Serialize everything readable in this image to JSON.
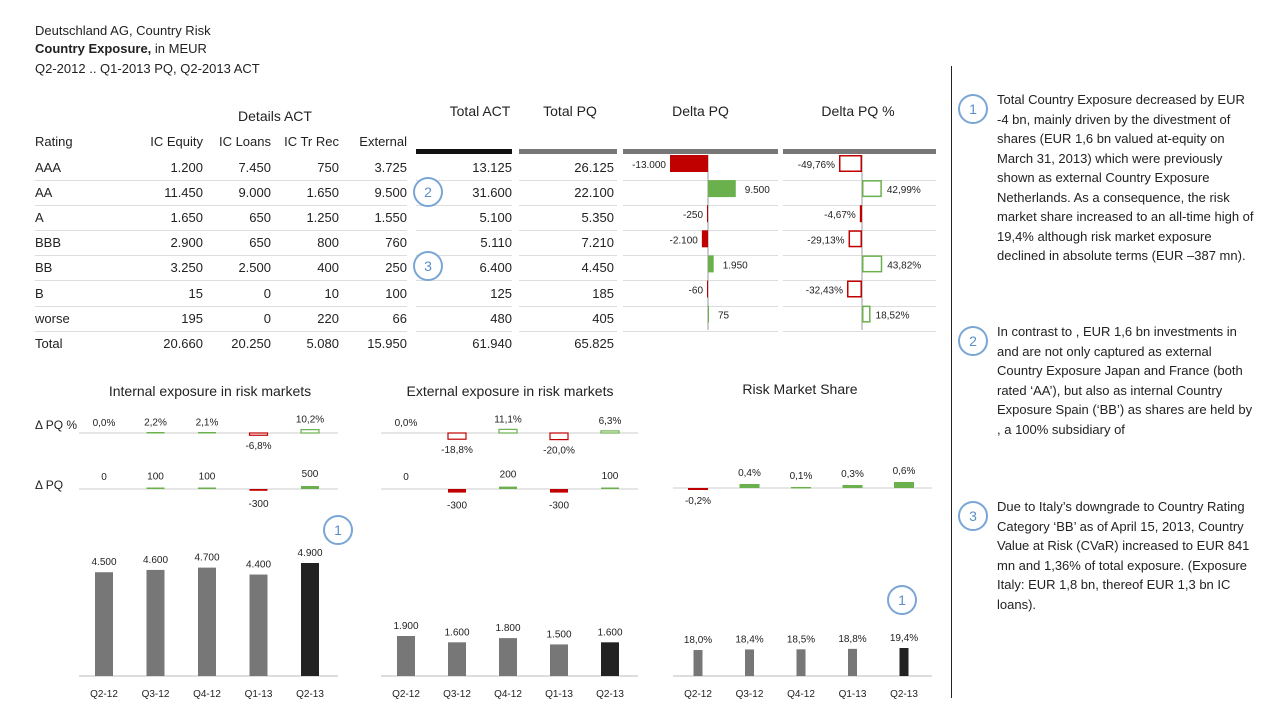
{
  "header": {
    "line1": "Deutschland AG, Country Risk",
    "line2_bold": "Country Exposure,",
    "line2_rest": " in MEUR",
    "line3": "Q2-2012 .. Q1-2013 PQ, Q2-2013 ACT"
  },
  "table": {
    "group_header": "Details ACT",
    "columns": [
      "Rating",
      "IC Equity",
      "IC Loans",
      "IC Tr Rec",
      "External",
      "Total ACT",
      "Total PQ",
      "Delta PQ",
      "Delta PQ %"
    ],
    "rows": [
      {
        "rating": "AAA",
        "ic_equity": "1.200",
        "ic_loans": "7.450",
        "ic_tr_rec": "750",
        "external": "3.725",
        "total_act": "13.125",
        "total_pq": "26.125",
        "delta_label": "-13.000",
        "delta_pct_label": "-49,76%"
      },
      {
        "rating": "AA",
        "ic_equity": "11.450",
        "ic_loans": "9.000",
        "ic_tr_rec": "1.650",
        "external": "9.500",
        "total_act": "31.600",
        "total_pq": "22.100",
        "delta_label": "9.500",
        "delta_pct_label": "42,99%"
      },
      {
        "rating": "A",
        "ic_equity": "1.650",
        "ic_loans": "650",
        "ic_tr_rec": "1.250",
        "external": "1.550",
        "total_act": "5.100",
        "total_pq": "5.350",
        "delta_label": "-250",
        "delta_pct_label": "-4,67%"
      },
      {
        "rating": "BBB",
        "ic_equity": "2.900",
        "ic_loans": "650",
        "ic_tr_rec": "800",
        "external": "760",
        "total_act": "5.110",
        "total_pq": "7.210",
        "delta_label": "-2.100",
        "delta_pct_label": "-29,13%"
      },
      {
        "rating": "BB",
        "ic_equity": "3.250",
        "ic_loans": "2.500",
        "ic_tr_rec": "400",
        "external": "250",
        "total_act": "6.400",
        "total_pq": "4.450",
        "delta_label": "1.950",
        "delta_pct_label": "43,82%"
      },
      {
        "rating": "B",
        "ic_equity": "15",
        "ic_loans": "0",
        "ic_tr_rec": "10",
        "external": "100",
        "total_act": "125",
        "total_pq": "185",
        "delta_label": "-60",
        "delta_pct_label": "-32,43%"
      },
      {
        "rating": "worse",
        "ic_equity": "195",
        "ic_loans": "0",
        "ic_tr_rec": "220",
        "external": "66",
        "total_act": "480",
        "total_pq": "405",
        "delta_label": "75",
        "delta_pct_label": "18,52%"
      }
    ],
    "total": {
      "rating": "Total",
      "ic_equity": "20.660",
      "ic_loans": "20.250",
      "ic_tr_rec": "5.080",
      "external": "15.950",
      "total_act": "61.940",
      "total_pq": "65.825"
    }
  },
  "badges": {
    "one": "1",
    "two": "2",
    "three": "3"
  },
  "labels": {
    "delta_pq_pct": "Δ PQ %",
    "delta_pq": "Δ PQ"
  },
  "colors": {
    "actual": "#222222",
    "previous": "#777777",
    "positive": "#6ab04c",
    "negative": "#c00000",
    "badge": "#5b8ec8"
  },
  "chart_data": [
    {
      "type": "bar",
      "title": "Delta PQ",
      "categories": [
        "AAA",
        "AA",
        "A",
        "BBB",
        "BB",
        "B",
        "worse"
      ],
      "values": [
        -13000,
        9500,
        -250,
        -2100,
        1950,
        -60,
        75
      ],
      "orientation": "horizontal"
    },
    {
      "type": "bar",
      "title": "Delta PQ %",
      "categories": [
        "AAA",
        "AA",
        "A",
        "BBB",
        "BB",
        "B",
        "worse"
      ],
      "values": [
        -49.76,
        42.99,
        -4.67,
        -29.13,
        43.82,
        -32.43,
        18.52
      ],
      "orientation": "horizontal"
    },
    {
      "type": "bar",
      "title": "Internal exposure in risk markets",
      "categories": [
        "Q2-12",
        "Q3-12",
        "Q4-12",
        "Q1-13",
        "Q2-13"
      ],
      "values": [
        4500,
        4600,
        4700,
        4400,
        4900
      ],
      "value_labels": [
        "4.500",
        "4.600",
        "4.700",
        "4.400",
        "4.900"
      ],
      "delta_pq_pct": [
        0.0,
        2.2,
        2.1,
        -6.8,
        10.2
      ],
      "delta_pq_pct_labels": [
        "0,0%",
        "2,2%",
        "2,1%",
        "-6,8%",
        "10,2%"
      ],
      "delta_pq": [
        0,
        100,
        100,
        -300,
        500
      ],
      "delta_pq_labels": [
        "0",
        "100",
        "100",
        "-300",
        "500"
      ]
    },
    {
      "type": "bar",
      "title": "External exposure in risk markets",
      "categories": [
        "Q2-12",
        "Q3-12",
        "Q4-12",
        "Q1-13",
        "Q2-13"
      ],
      "values": [
        1900,
        1600,
        1800,
        1500,
        1600
      ],
      "value_labels": [
        "1.900",
        "1.600",
        "1.800",
        "1.500",
        "1.600"
      ],
      "delta_pq_pct": [
        0.0,
        -18.8,
        11.1,
        -20.0,
        6.3
      ],
      "delta_pq_pct_labels": [
        "0,0%",
        "-18,8%",
        "11,1%",
        "-20,0%",
        "6,3%"
      ],
      "delta_pq": [
        0,
        -300,
        200,
        -300,
        100
      ],
      "delta_pq_labels": [
        "0",
        "-300",
        "200",
        "-300",
        "100"
      ]
    },
    {
      "type": "bar",
      "title": "Risk Market Share",
      "categories": [
        "Q2-12",
        "Q3-12",
        "Q4-12",
        "Q1-13",
        "Q2-13"
      ],
      "values": [
        18.0,
        18.4,
        18.5,
        18.8,
        19.4
      ],
      "value_labels": [
        "18,0%",
        "18,4%",
        "18,5%",
        "18,8%",
        "19,4%"
      ],
      "delta_pq": [
        -0.2,
        0.4,
        0.1,
        0.3,
        0.6
      ],
      "delta_pq_labels": [
        "-0,2%",
        "0,4%",
        "0,1%",
        "0,3%",
        "0,6%"
      ]
    }
  ],
  "notes": [
    {
      "number": "1",
      "text": "Total Country Exposure decreased by EUR -4 bn, mainly driven by the divestment of           shares (EUR 1,6 bn valued at-equity on March 31, 2013) which were previously shown as external Country Exposure Netherlands. As a consequence, the risk market share increased to an all-time high of 19,4% although risk market exposure declined in absolute terms (EUR –387 mn)."
    },
    {
      "number": "2",
      "text": "In contrast to          , EUR 1,6 bn investments in                and                are not only captured as external Country Exposure Japan and France (both rated ‘AA’), but also as internal Country Exposure Spain (‘BB’) as shares are held by                  , a 100% subsidiary of"
    },
    {
      "number": "3",
      "text": "Due to Italy’s downgrade to Country Rating Category ‘BB’ as of April 15, 2013, Country Value at Risk (CVaR) increased to EUR 841 mn and 1,36% of total exposure. (Exposure Italy: EUR 1,8 bn, thereof EUR 1,3 bn IC loans)."
    }
  ]
}
